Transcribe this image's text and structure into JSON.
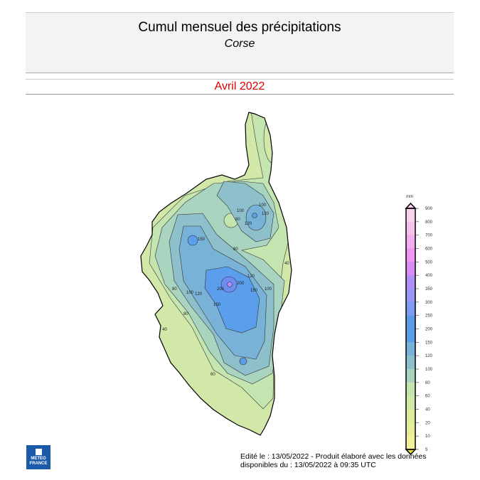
{
  "header": {
    "title": "Cumul mensuel des précipitations",
    "subtitle": "Corse"
  },
  "period": "Avril 2022",
  "legend": {
    "unit": "mm",
    "ticks": [
      "900",
      "800",
      "700",
      "600",
      "500",
      "400",
      "350",
      "300",
      "250",
      "200",
      "150",
      "120",
      "100",
      "80",
      "60",
      "40",
      "20",
      "10",
      "5"
    ],
    "colors": [
      "#f9d3ea",
      "#f6c2ec",
      "#f2aef0",
      "#ee96f2",
      "#d88ef4",
      "#b090f4",
      "#9a96f2",
      "#7e9cf0",
      "#5c9ae8",
      "#5aa0e6",
      "#78b2d6",
      "#8ec0cc",
      "#a8d4c0",
      "#c4e4b0",
      "#d2e8a8",
      "#dcec9c",
      "#e6ee9a",
      "#f2f09a"
    ]
  },
  "map": {
    "contour_labels": [
      "100",
      "80",
      "100",
      "120",
      "120",
      "150",
      "80",
      "40",
      "120",
      "200",
      "200",
      "150",
      "100",
      "80",
      "120",
      "100",
      "150",
      "80",
      "40",
      "60"
    ]
  },
  "footer": {
    "line1": "Edité le : 13/05/2022 - Produit élaboré avec les données",
    "line2": "disponibles du : 13/05/2022 à 09:35 UTC",
    "logo": "METEO FRANCE"
  }
}
